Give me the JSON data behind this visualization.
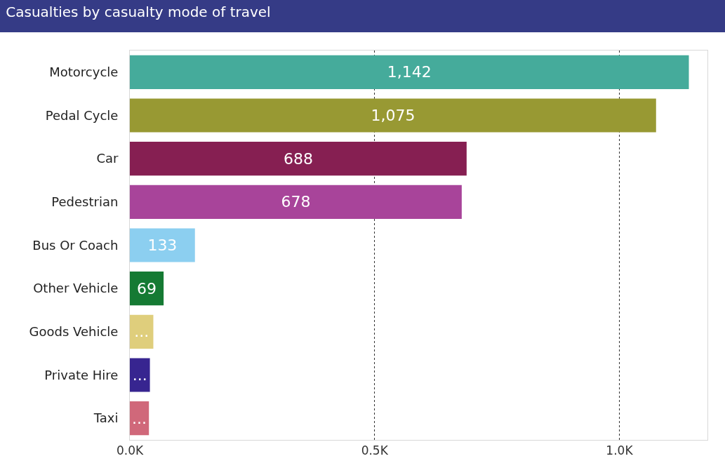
{
  "chart_data": {
    "type": "bar",
    "orientation": "horizontal",
    "title": "Casualties by casualty mode of travel",
    "categories": [
      "Motorcycle",
      "Pedal Cycle",
      "Car",
      "Pedestrian",
      "Bus Or Coach",
      "Other Vehicle",
      "Goods Vehicle",
      "Private Hire",
      "Taxi"
    ],
    "values": [
      1142,
      1075,
      688,
      678,
      133,
      69,
      48,
      41,
      39
    ],
    "colors": [
      "#45ab9b",
      "#989933",
      "#861f52",
      "#a8449a",
      "#8ccff0",
      "#157a33",
      "#dfce7c",
      "#372590",
      "#d0687a"
    ],
    "value_labels": [
      "1,142",
      "1,075",
      "688",
      "678",
      "133",
      "69",
      "...",
      "...",
      "..."
    ],
    "xlim": [
      0,
      1180
    ],
    "xticks": [
      {
        "value": 0,
        "label": "0.0K"
      },
      {
        "value": 500,
        "label": "0.5K"
      },
      {
        "value": 1000,
        "label": "1.0K"
      }
    ],
    "grid": "x"
  }
}
